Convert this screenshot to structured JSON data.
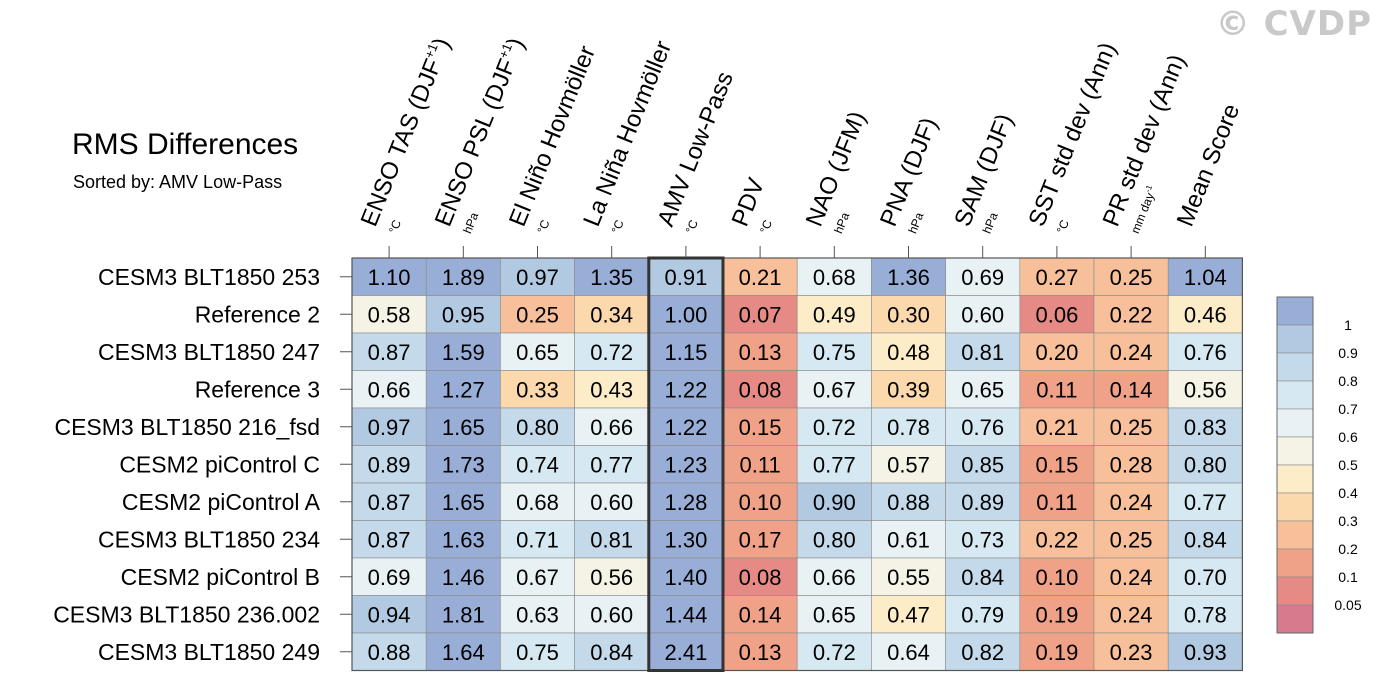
{
  "watermark": "© CVDP",
  "header": {
    "title": "RMS Differences",
    "subtitle": "Sorted by: AMV Low-Pass"
  },
  "chart_data": {
    "type": "heatmap",
    "columns": [
      {
        "label": "ENSO TAS (DJF",
        "sup": "+1",
        "close": ")",
        "unit": "°C",
        "highlighted": false
      },
      {
        "label": "ENSO PSL (DJF",
        "sup": "+1",
        "close": ")",
        "unit": "hPa",
        "highlighted": false
      },
      {
        "label": "El Niño Hovmöller",
        "sup": "",
        "close": "",
        "unit": "°C",
        "highlighted": false
      },
      {
        "label": "La Niña Hovmöller",
        "sup": "",
        "close": "",
        "unit": "°C",
        "highlighted": false
      },
      {
        "label": "AMV Low-Pass",
        "sup": "",
        "close": "",
        "unit": "°C",
        "highlighted": true
      },
      {
        "label": "PDV",
        "sup": "",
        "close": "",
        "unit": "°C",
        "highlighted": false
      },
      {
        "label": "NAO (JFM)",
        "sup": "",
        "close": "",
        "unit": "hPa",
        "highlighted": false
      },
      {
        "label": "PNA (DJF)",
        "sup": "",
        "close": "",
        "unit": "hPa",
        "highlighted": false
      },
      {
        "label": "SAM (DJF)",
        "sup": "",
        "close": "",
        "unit": "hPa",
        "highlighted": false
      },
      {
        "label": "SST std dev (Ann)",
        "sup": "",
        "close": "",
        "unit": "°C",
        "highlighted": false
      },
      {
        "label": "PR std dev (Ann)",
        "sup": "",
        "close": "",
        "unit": "mm day",
        "unit_sup": "-1",
        "highlighted": false
      },
      {
        "label": "Mean Score",
        "sup": "",
        "close": "",
        "unit": "",
        "highlighted": false
      }
    ],
    "rows": [
      "CESM3 BLT1850 253",
      "Reference 2",
      "CESM3 BLT1850 247",
      "Reference 3",
      "CESM3 BLT1850 216_fsd",
      "CESM2 piControl C",
      "CESM2 piControl A",
      "CESM3 BLT1850 234",
      "CESM2 piControl B",
      "CESM3 BLT1850 236.002",
      "CESM3 BLT1850 249"
    ],
    "values": [
      [
        "1.10",
        "1.89",
        "0.97",
        "1.35",
        "0.91",
        "0.21",
        "0.68",
        "1.36",
        "0.69",
        "0.27",
        "0.25",
        "1.04"
      ],
      [
        "0.58",
        "0.95",
        "0.25",
        "0.34",
        "1.00",
        "0.07",
        "0.49",
        "0.30",
        "0.60",
        "0.06",
        "0.22",
        "0.46"
      ],
      [
        "0.87",
        "1.59",
        "0.65",
        "0.72",
        "1.15",
        "0.13",
        "0.75",
        "0.48",
        "0.81",
        "0.20",
        "0.24",
        "0.76"
      ],
      [
        "0.66",
        "1.27",
        "0.33",
        "0.43",
        "1.22",
        "0.08",
        "0.67",
        "0.39",
        "0.65",
        "0.11",
        "0.14",
        "0.56"
      ],
      [
        "0.97",
        "1.65",
        "0.80",
        "0.66",
        "1.22",
        "0.15",
        "0.72",
        "0.78",
        "0.76",
        "0.21",
        "0.25",
        "0.83"
      ],
      [
        "0.89",
        "1.73",
        "0.74",
        "0.77",
        "1.23",
        "0.11",
        "0.77",
        "0.57",
        "0.85",
        "0.15",
        "0.28",
        "0.80"
      ],
      [
        "0.87",
        "1.65",
        "0.68",
        "0.60",
        "1.28",
        "0.10",
        "0.90",
        "0.88",
        "0.89",
        "0.11",
        "0.24",
        "0.77"
      ],
      [
        "0.87",
        "1.63",
        "0.71",
        "0.81",
        "1.30",
        "0.17",
        "0.80",
        "0.61",
        "0.73",
        "0.22",
        "0.25",
        "0.84"
      ],
      [
        "0.69",
        "1.46",
        "0.67",
        "0.56",
        "1.40",
        "0.08",
        "0.66",
        "0.55",
        "0.84",
        "0.10",
        "0.24",
        "0.70"
      ],
      [
        "0.94",
        "1.81",
        "0.63",
        "0.60",
        "1.44",
        "0.14",
        "0.65",
        "0.47",
        "0.79",
        "0.19",
        "0.24",
        "0.78"
      ],
      [
        "0.88",
        "1.64",
        "0.75",
        "0.84",
        "2.41",
        "0.13",
        "0.72",
        "0.64",
        "0.82",
        "0.19",
        "0.23",
        "0.93"
      ]
    ],
    "colorbar": {
      "labels": [
        "1",
        "0.9",
        "0.8",
        "0.7",
        "0.6",
        "0.5",
        "0.4",
        "0.3",
        "0.2",
        "0.1",
        "0.05"
      ],
      "colors": [
        "#99aed6",
        "#b2c9e2",
        "#c4daea",
        "#d6e8f1",
        "#e8f2f5",
        "#f5f3e6",
        "#fcecc8",
        "#fcd9ac",
        "#f8c09a",
        "#f0a288",
        "#e58a85",
        "#d77a8e"
      ]
    }
  }
}
